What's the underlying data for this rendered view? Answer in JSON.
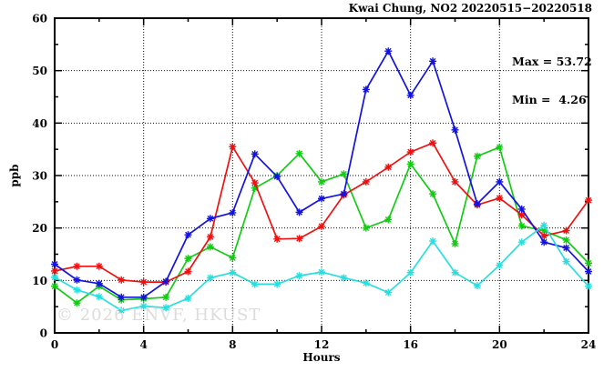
{
  "title": "Kwai Chung, NO2 20220515−20220518",
  "annotation": {
    "max_label": "Max = 53.72",
    "min_label": "Min =  4.26"
  },
  "watermark": "© 2026 ENVF, HKUST",
  "chart_data": {
    "type": "line",
    "title": "Kwai Chung, NO2 20220515−20220518",
    "xlabel": "Hours",
    "ylabel": "ppb",
    "xlim": [
      0,
      24
    ],
    "ylim": [
      0,
      60
    ],
    "x_major_ticks": [
      0,
      4,
      8,
      12,
      16,
      20,
      24
    ],
    "y_major_ticks": [
      0,
      10,
      20,
      30,
      40,
      50,
      60
    ],
    "x_minor_step": 2,
    "y_minor_step": 5,
    "grid": true,
    "legend": "none",
    "stats": {
      "max": 53.72,
      "min": 4.26
    },
    "x": [
      0,
      1,
      2,
      3,
      4,
      5,
      6,
      7,
      8,
      9,
      10,
      11,
      12,
      13,
      14,
      15,
      16,
      17,
      18,
      19,
      20,
      21,
      22,
      23,
      24
    ],
    "series": [
      {
        "name": "green",
        "color": "#12cb12",
        "values": [
          8.9,
          5.7,
          8.9,
          6.3,
          6.5,
          6.8,
          14.2,
          16.4,
          14.3,
          27.6,
          30.0,
          34.2,
          28.8,
          30.3,
          20.0,
          21.6,
          32.2,
          26.5,
          17.0,
          33.7,
          35.4,
          20.4,
          19.5,
          17.7,
          13.3
        ]
      },
      {
        "name": "red",
        "color": "#ee1111",
        "values": [
          11.8,
          12.7,
          12.7,
          10.1,
          9.7,
          9.7,
          11.7,
          18.3,
          35.5,
          28.6,
          17.9,
          18.0,
          20.3,
          26.3,
          28.8,
          31.6,
          34.5,
          36.2,
          28.8,
          24.4,
          25.7,
          22.5,
          18.5,
          19.5,
          25.3
        ]
      },
      {
        "name": "blue",
        "color": "#1313dd",
        "values": [
          13.1,
          10.1,
          9.4,
          6.8,
          6.8,
          9.8,
          18.7,
          21.8,
          22.9,
          34.1,
          29.8,
          23.0,
          25.6,
          26.5,
          46.4,
          53.72,
          45.3,
          51.8,
          38.7,
          24.6,
          28.8,
          23.6,
          17.3,
          16.2,
          11.7
        ]
      },
      {
        "name": "cyan",
        "color": "#2bdede",
        "values": [
          10.6,
          8.2,
          6.9,
          4.26,
          5.1,
          4.8,
          6.6,
          10.5,
          11.5,
          9.3,
          9.3,
          10.9,
          11.6,
          10.5,
          9.5,
          7.7,
          11.5,
          17.5,
          11.5,
          9.0,
          12.9,
          17.3,
          20.5,
          13.6,
          8.9
        ]
      }
    ]
  }
}
